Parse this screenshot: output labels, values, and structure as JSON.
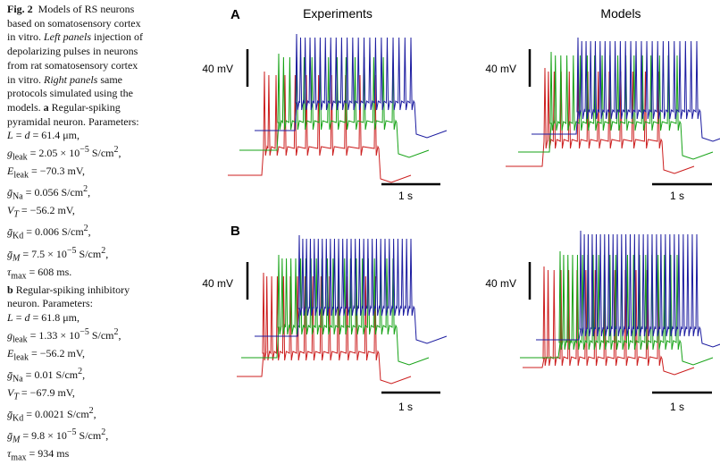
{
  "caption": {
    "fig_label": "Fig. 2",
    "intro": "Models of RS neurons based on somatosensory cortex in vitro.",
    "left_panels_label": "Left panels",
    "left_panels_text": "injection of depolarizing pulses in neurons from rat somatosensory cortex in vitro.",
    "right_panels_label": "Right panels",
    "right_panels_text": "same protocols simulated using the models.",
    "a_label": "a",
    "a_text": "Regular-spiking pyramidal neuron. Parameters:",
    "a_params": [
      "L = d = 61.4 μm,",
      "g_leak = 2.05 × 10⁻⁵ S/cm²,",
      "E_leak = −70.3 mV,",
      "ḡ_Na = 0.056 S/cm²,",
      "V_T = −56.2 mV,",
      "ḡ_Kd = 0.006 S/cm²,",
      "ḡ_M = 7.5 × 10⁻⁵ S/cm²,",
      "τ_max = 608 ms."
    ],
    "b_label": "b",
    "b_text": "Regular-spiking inhibitory neuron. Parameters:",
    "b_params": [
      "L = d = 61.8 μm,",
      "g_leak = 1.33 × 10⁻⁵ S/cm²,",
      "E_leak = −56.2 mV,",
      "ḡ_Na = 0.01 S/cm²,",
      "V_T = −67.9 mV,",
      "ḡ_Kd = 0.0021 S/cm²,",
      "ḡ_M = 9.8 × 10⁻⁵ S/cm²,",
      "τ_max = 934 ms"
    ]
  },
  "figure": {
    "col_titles": [
      "Experiments",
      "Models"
    ],
    "panel_labels": [
      "A",
      "B"
    ],
    "voltage_scale_label": "40 mV",
    "time_scale_label": "1 s",
    "trace_colors": {
      "red": "#cc1f1f",
      "green": "#17a317",
      "blue": "#1c1ca0"
    }
  }
}
